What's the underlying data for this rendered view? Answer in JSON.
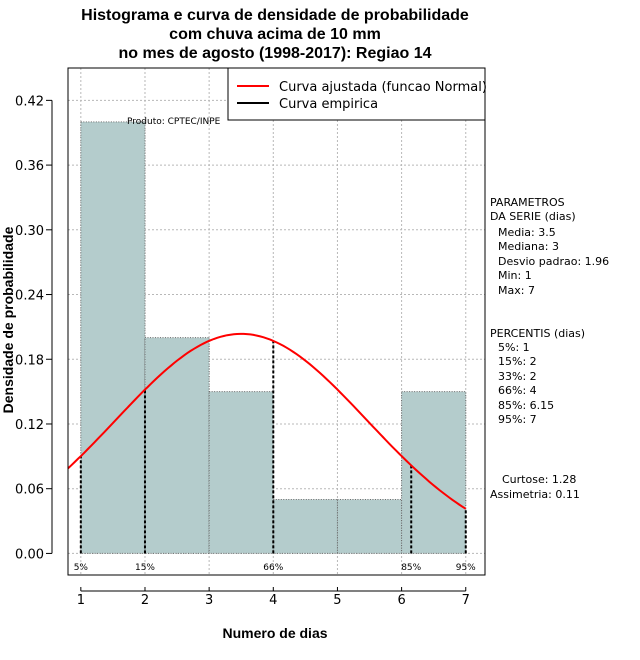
{
  "chart_data": {
    "type": "bar",
    "title_lines": [
      "Histograma e curva de densidade de probabilidade",
      "com chuva acima de 10 mm",
      "no mes de agosto (1998-2017): Regiao 14"
    ],
    "xlabel": "Numero de dias",
    "ylabel": "Densidade de probabilidade",
    "xlim": [
      0.8,
      7.3
    ],
    "ylim": [
      -0.02,
      0.45
    ],
    "x_ticks": [
      1,
      2,
      3,
      4,
      5,
      6,
      7
    ],
    "y_ticks": [
      0.0,
      0.06,
      0.12,
      0.18,
      0.24,
      0.3,
      0.36,
      0.42
    ],
    "y_tick_labels": [
      "0.00",
      "0.06",
      "0.12",
      "0.18",
      "0.24",
      "0.30",
      "0.36",
      "0.42"
    ],
    "bins": [
      {
        "start": 1,
        "end": 2,
        "value": 0.4
      },
      {
        "start": 2,
        "end": 3,
        "value": 0.2
      },
      {
        "start": 3,
        "end": 4,
        "value": 0.15
      },
      {
        "start": 4,
        "end": 5,
        "value": 0.05
      },
      {
        "start": 5,
        "end": 6,
        "value": 0.05
      },
      {
        "start": 6,
        "end": 7,
        "value": 0.15
      }
    ],
    "fitted_curve": {
      "name": "Curva ajustada (funcao Normal)",
      "mean": 3.5,
      "sd": 1.96,
      "color": "#ff0000"
    },
    "empirical_curve": {
      "name": "Curva empirica",
      "color": "#000000"
    },
    "percentile_lines": [
      {
        "label": "5%",
        "x": 1
      },
      {
        "label": "15%",
        "x": 2
      },
      {
        "label": "66%",
        "x": 4
      },
      {
        "label": "85%",
        "x": 6.15
      },
      {
        "label": "95%",
        "x": 7
      }
    ],
    "credit": "Produto: CPTEC/INPE",
    "bar_color": "#b4cccc",
    "grid": true
  },
  "stats": {
    "params_title_lines": [
      "PARAMETROS",
      "DA SERIE (dias)"
    ],
    "params": [
      "Media: 3.5",
      "Mediana: 3",
      "Desvio padrao: 1.96",
      "Min: 1",
      "Max: 7"
    ],
    "percentis_title": "PERCENTIS (dias)",
    "percentis": [
      "5%: 1",
      "15%: 2",
      "33%: 2",
      "66%: 4",
      "85%: 6.15",
      "95%: 7"
    ],
    "curtose": "Curtose: 1.28",
    "assimetria": "Assimetria: 0.11"
  }
}
